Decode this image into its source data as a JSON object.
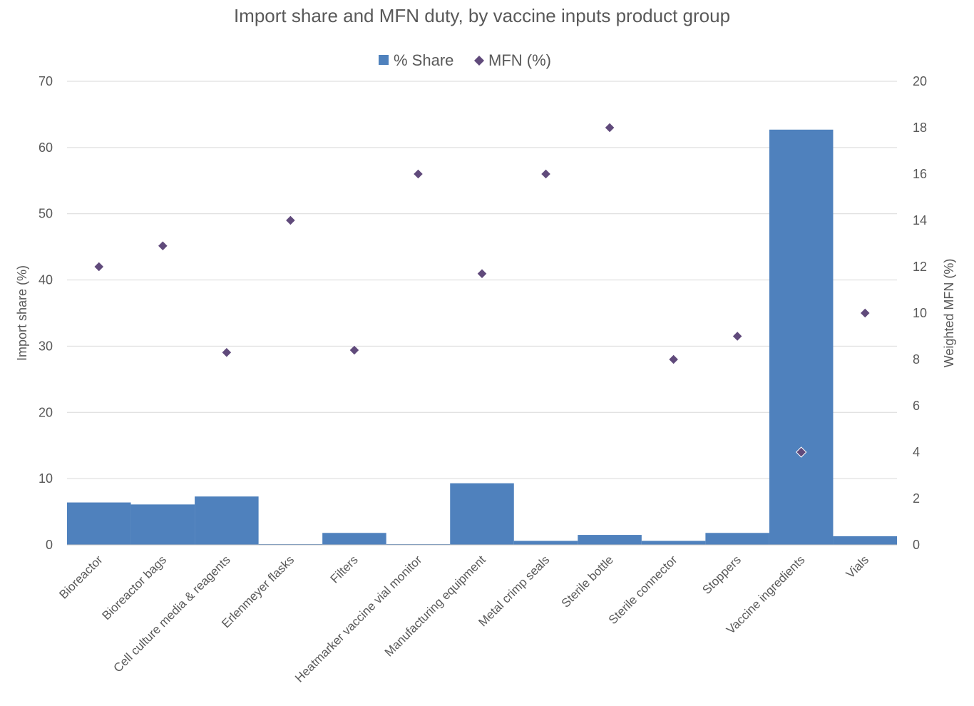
{
  "chart_data": {
    "type": "bar",
    "title": "Import share and MFN duty, by vaccine inputs product group",
    "categories": [
      "Bioreactor",
      "Bioreactor bags",
      "Cell culture media & reagents",
      "Erlenmeyer flasks",
      "Filters",
      "Heatmarker vaccine vial monitor",
      "Manufacturing equipment",
      "Metal crimp seals",
      "Sterile bottle",
      "Sterile connector",
      "Stoppers",
      "Vaccine ingredients",
      "Vials"
    ],
    "series": [
      {
        "name": "% Share",
        "type": "bar",
        "axis": "left",
        "color": "#4f81bd",
        "values": [
          6.4,
          6.1,
          7.3,
          0.1,
          1.8,
          0.1,
          9.3,
          0.6,
          1.5,
          0.6,
          1.8,
          62.7,
          1.3
        ]
      },
      {
        "name": "MFN (%)",
        "type": "scatter",
        "axis": "right",
        "color": "#604a7b",
        "values": [
          12.0,
          12.9,
          8.3,
          14.0,
          8.4,
          16.0,
          11.7,
          16.0,
          18.0,
          8.0,
          9.0,
          4.0,
          10.0
        ]
      }
    ],
    "ylabel": "Import share (%)",
    "y2label": "Weighted MFN (%)",
    "ylim": [
      0,
      70
    ],
    "y2lim": [
      0,
      20
    ],
    "yticks": [
      0,
      10,
      20,
      30,
      40,
      50,
      60,
      70
    ],
    "y2ticks": [
      0,
      2,
      4,
      6,
      8,
      10,
      12,
      14,
      16,
      18,
      20
    ],
    "grid": true,
    "legend": "top-center"
  }
}
